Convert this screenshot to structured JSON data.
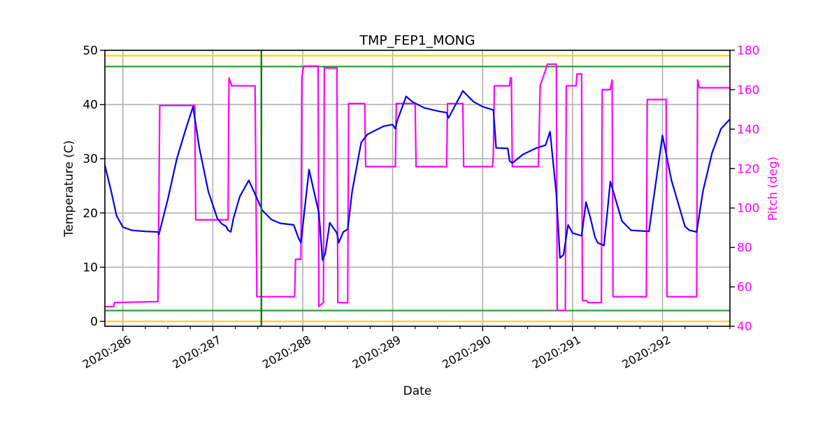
{
  "chart_data": {
    "type": "line",
    "title": "TMP_FEP1_MONG",
    "xlabel": "Date",
    "ylabel": "Temperature (C)",
    "ylabel_right": "Pitch (deg)",
    "xlim": [
      285.8,
      292.75
    ],
    "ylim": [
      -0.9,
      50
    ],
    "ylim_right": [
      40,
      180
    ],
    "grid": true,
    "x_ticks": [
      286,
      287,
      288,
      289,
      290,
      291,
      292
    ],
    "x_tick_labels": [
      "2020:286",
      "2020:287",
      "2020:288",
      "2020:289",
      "2020:290",
      "2020:291",
      "2020:292"
    ],
    "y_ticks": [
      0,
      10,
      20,
      30,
      40,
      50
    ],
    "y_tick_labels": [
      "0",
      "10",
      "20",
      "30",
      "40",
      "50"
    ],
    "y_ticks_right": [
      40,
      60,
      80,
      100,
      120,
      140,
      160,
      180
    ],
    "y_tick_labels_right": [
      "40",
      "60",
      "80",
      "100",
      "120",
      "140",
      "160",
      "180"
    ],
    "colors": {
      "temperature": "#0000ee",
      "pitch": "#ff00ff",
      "planning_limit": "#2ca02c",
      "yellow_limit": "#ffd700",
      "vline": "#008000",
      "grid": "#b0b0b0",
      "right_axis": "#ff00ff"
    },
    "hlines": [
      {
        "name": "yellow-high",
        "y": 49,
        "color": "#ffd700"
      },
      {
        "name": "planning-high",
        "y": 47,
        "color": "#2ca02c"
      },
      {
        "name": "planning-low",
        "y": 2,
        "color": "#2ca02c"
      },
      {
        "name": "yellow-low",
        "y": 0,
        "color": "#ffd700"
      }
    ],
    "vlines": [
      {
        "name": "current-time",
        "x": 287.54,
        "color": "#008000"
      }
    ],
    "series": [
      {
        "name": "TMP_FEP1_MONG",
        "axis": "left",
        "color": "#0000ee",
        "x": [
          285.8,
          285.87,
          285.93,
          286.0,
          286.1,
          286.25,
          286.39,
          286.4,
          286.5,
          286.6,
          286.7,
          286.78,
          286.85,
          286.95,
          287.05,
          287.1,
          287.15,
          287.17,
          287.2,
          287.23,
          287.3,
          287.4,
          287.47,
          287.55,
          287.65,
          287.75,
          287.9,
          287.95,
          287.98,
          288.07,
          288.18,
          288.22,
          288.25,
          288.3,
          288.33,
          288.38,
          288.4,
          288.45,
          288.5,
          288.55,
          288.65,
          288.72,
          288.9,
          289.0,
          289.03,
          289.05,
          289.15,
          289.22,
          289.35,
          289.5,
          289.6,
          289.62,
          289.7,
          289.78,
          289.9,
          290.0,
          290.12,
          290.15,
          290.28,
          290.3,
          290.33,
          290.45,
          290.6,
          290.7,
          290.75,
          290.82,
          290.86,
          290.9,
          290.95,
          291.0,
          291.1,
          291.15,
          291.2,
          291.25,
          291.28,
          291.35,
          291.42,
          291.55,
          291.65,
          291.85,
          292.0,
          292.1,
          292.25,
          292.3,
          292.38,
          292.45,
          292.55,
          292.65,
          292.75
        ],
        "y": [
          28.8,
          24.0,
          19.5,
          17.4,
          16.8,
          16.6,
          16.5,
          16.0,
          22.5,
          30.0,
          35.5,
          39.6,
          32.0,
          24.0,
          19.0,
          18.0,
          17.5,
          16.8,
          16.5,
          19.0,
          23.0,
          26.0,
          23.5,
          20.5,
          18.8,
          18.1,
          17.8,
          15.5,
          14.5,
          28.0,
          20.0,
          11.3,
          12.5,
          18.2,
          17.5,
          16.3,
          14.5,
          16.5,
          17.0,
          24.0,
          33.0,
          34.5,
          36.0,
          36.3,
          35.5,
          37.0,
          41.5,
          40.5,
          39.4,
          38.8,
          38.5,
          37.5,
          40.0,
          42.5,
          40.5,
          39.6,
          39.0,
          32.0,
          31.9,
          29.6,
          29.2,
          30.8,
          32.0,
          32.5,
          35.0,
          23.5,
          11.7,
          12.3,
          17.8,
          16.3,
          15.8,
          22.0,
          19.0,
          15.5,
          14.5,
          14.0,
          25.8,
          18.5,
          16.8,
          16.6,
          34.3,
          26.0,
          17.5,
          16.8,
          16.5,
          24.0,
          31.0,
          35.5,
          37.3
        ]
      },
      {
        "name": "Pitch",
        "axis": "right",
        "color": "#ff00ff",
        "x": [
          285.8,
          285.9,
          285.91,
          286.39,
          286.41,
          286.8,
          286.81,
          287.17,
          287.18,
          287.21,
          287.22,
          287.47,
          287.49,
          287.91,
          287.92,
          287.98,
          287.99,
          288.01,
          288.17,
          288.18,
          288.23,
          288.24,
          288.28,
          288.29,
          288.38,
          288.39,
          288.5,
          288.51,
          288.69,
          288.7,
          289.03,
          289.04,
          289.25,
          289.26,
          289.6,
          289.61,
          289.78,
          289.79,
          290.11,
          290.12,
          290.13,
          290.3,
          290.31,
          290.32,
          290.33,
          290.62,
          290.64,
          290.7,
          290.72,
          290.82,
          290.83,
          290.92,
          290.93,
          291.04,
          291.05,
          291.1,
          291.11,
          291.16,
          291.17,
          291.32,
          291.33,
          291.42,
          291.44,
          291.45,
          291.82,
          291.83,
          292.04,
          292.05,
          292.38,
          292.39,
          292.41,
          292.75
        ],
        "y": [
          50,
          50,
          52,
          52.5,
          152,
          152,
          94,
          94,
          166,
          162,
          162,
          162,
          55,
          55,
          74,
          74,
          166,
          172,
          172,
          50,
          52,
          171,
          171,
          171,
          171,
          52,
          52,
          153,
          153,
          121,
          121,
          153,
          153,
          121,
          121,
          153,
          153,
          121,
          121,
          128,
          162,
          162,
          166,
          166,
          121,
          121,
          162,
          170,
          173,
          173,
          48,
          48,
          162,
          162,
          168,
          168,
          53,
          53,
          52,
          52,
          160,
          160,
          165,
          55,
          55,
          155,
          155,
          55,
          55,
          165,
          161,
          161
        ]
      }
    ]
  }
}
